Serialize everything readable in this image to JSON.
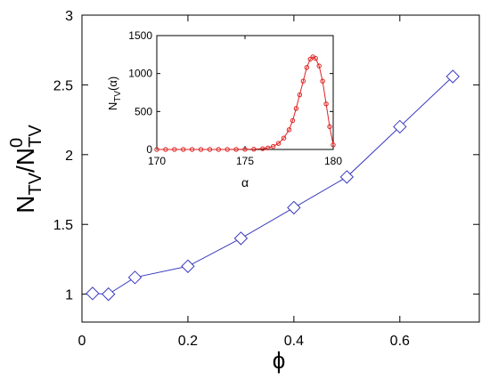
{
  "chart_data": [
    {
      "type": "line",
      "xlabel": "ϕ",
      "ylabel": {
        "main": "N",
        "sub1": "TV",
        "slash": "/N",
        "sup": "0",
        "sub2": "TV"
      },
      "xlim": [
        0,
        0.75
      ],
      "ylim": [
        0.8,
        3.0
      ],
      "x_ticks": [
        0,
        0.2,
        0.4,
        0.6
      ],
      "x_tick_labels": [
        "0",
        "0.2",
        "0.4",
        "0.6"
      ],
      "y_ticks": [
        1,
        1.5,
        2,
        2.5,
        3
      ],
      "y_tick_labels": [
        "1",
        "1.5",
        "2",
        "2.5",
        "3"
      ],
      "grid": false,
      "marker": "diamond",
      "color": "#3b3bbf",
      "series": [
        {
          "x": [
            0.02,
            0.05,
            0.1,
            0.2,
            0.3,
            0.4,
            0.5,
            0.6,
            0.7
          ],
          "y": [
            1.005,
            1.0,
            1.12,
            1.2,
            1.4,
            1.62,
            1.84,
            2.2,
            2.56
          ]
        }
      ]
    },
    {
      "type": "line",
      "inset": true,
      "xlabel": "α",
      "ylabel": {
        "main": "N",
        "sub": "TV",
        "suffix": "(α)"
      },
      "xlim": [
        170,
        180
      ],
      "ylim": [
        0,
        1500
      ],
      "x_ticks": [
        170,
        175,
        180
      ],
      "x_tick_labels": [
        "170",
        "175",
        "180"
      ],
      "y_ticks": [
        0,
        500,
        1000,
        1500
      ],
      "y_tick_labels": [
        "0",
        "500",
        "1000",
        "1500"
      ],
      "grid": false,
      "marker": "circle",
      "color": "#e02020",
      "series": [
        {
          "x": [
            170.0,
            170.5,
            171.0,
            171.5,
            172.0,
            172.5,
            173.0,
            173.5,
            174.0,
            174.5,
            175.0,
            175.5,
            176.0,
            176.3,
            176.6,
            176.9,
            177.2,
            177.5,
            177.7,
            177.9,
            178.1,
            178.3,
            178.5,
            178.7,
            178.85,
            179.0,
            179.2,
            179.4,
            179.6,
            179.8,
            180.0
          ],
          "y": [
            0,
            0,
            0,
            0,
            0,
            0,
            0,
            0,
            0,
            1,
            2,
            4,
            10,
            20,
            40,
            80,
            150,
            260,
            380,
            540,
            720,
            900,
            1080,
            1190,
            1220,
            1200,
            1100,
            900,
            600,
            300,
            60
          ]
        }
      ]
    }
  ]
}
